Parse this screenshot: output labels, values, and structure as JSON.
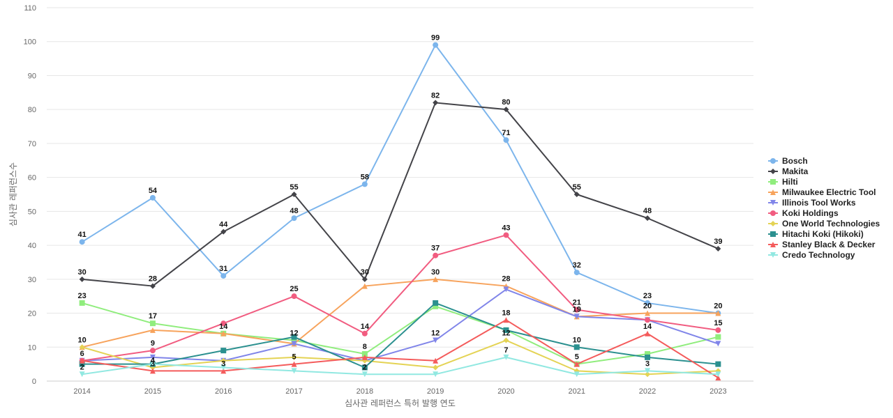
{
  "chart_data": {
    "type": "line",
    "title": "",
    "xlabel": "심사관 레퍼런스 특허 발행 연도",
    "ylabel": "심사관 레퍼런스수",
    "categories": [
      "2014",
      "2015",
      "2016",
      "2017",
      "2018",
      "2019",
      "2020",
      "2021",
      "2022",
      "2023"
    ],
    "ylim": [
      0,
      110
    ],
    "yticks": [
      0,
      10,
      20,
      30,
      40,
      50,
      60,
      70,
      80,
      90,
      100,
      110
    ],
    "grid": true,
    "legend_position": "right",
    "series": [
      {
        "name": "Bosch",
        "color": "#7cb5ec",
        "marker": "circle",
        "values": [
          41,
          54,
          31,
          48,
          58,
          99,
          71,
          32,
          23,
          20
        ]
      },
      {
        "name": "Makita",
        "color": "#434348",
        "marker": "diamond",
        "values": [
          30,
          28,
          44,
          55,
          30,
          82,
          80,
          55,
          48,
          39
        ]
      },
      {
        "name": "Hilti",
        "color": "#90ed7d",
        "marker": "square",
        "values": [
          23,
          17,
          14,
          12,
          8,
          22,
          15,
          5,
          8,
          13
        ]
      },
      {
        "name": "Milwaukee Electric Tool",
        "color": "#f7a35c",
        "marker": "triangle",
        "values": [
          10,
          15,
          14,
          11,
          28,
          30,
          28,
          19,
          20,
          20
        ]
      },
      {
        "name": "Illinois Tool Works",
        "color": "#8085e9",
        "marker": "triangle-down",
        "values": [
          6,
          7,
          6,
          11,
          6,
          12,
          27,
          19,
          18,
          11
        ]
      },
      {
        "name": "Koki Holdings",
        "color": "#f15c80",
        "marker": "circle",
        "values": [
          6,
          9,
          17,
          25,
          14,
          37,
          43,
          21,
          18,
          15
        ]
      },
      {
        "name": "One World Technologies",
        "color": "#e4d354",
        "marker": "diamond",
        "values": [
          10,
          4,
          6,
          7,
          6,
          4,
          12,
          3,
          2,
          3
        ]
      },
      {
        "name": "Hitachi Koki (Hikoki)",
        "color": "#2b908f",
        "marker": "square",
        "values": [
          5,
          5,
          9,
          13,
          4,
          23,
          15,
          10,
          7,
          5
        ]
      },
      {
        "name": "Stanley Black & Decker",
        "color": "#f45b5b",
        "marker": "triangle",
        "values": [
          6,
          3,
          3,
          5,
          7,
          6,
          18,
          5,
          14,
          1
        ]
      },
      {
        "name": "Credo Technology",
        "color": "#91e8e1",
        "marker": "triangle-down",
        "values": [
          2,
          5,
          4,
          3,
          2,
          2,
          7,
          2,
          3,
          2
        ]
      }
    ],
    "data_labels": [
      {
        "series": "Bosch",
        "points": [
          0,
          1,
          2,
          3,
          4,
          5,
          6,
          7,
          8,
          9
        ]
      },
      {
        "series": "Makita",
        "points": [
          0,
          1,
          2,
          3,
          4,
          5,
          6,
          7,
          8,
          9
        ]
      },
      {
        "series": "Hilti",
        "points": [
          0,
          1,
          2,
          3,
          4
        ]
      },
      {
        "series": "Milwaukee Electric Tool",
        "points": [
          5,
          6,
          7,
          8
        ]
      },
      {
        "series": "Illinois Tool Works",
        "points": [
          5
        ]
      },
      {
        "series": "Koki Holdings",
        "points": [
          0,
          1,
          3,
          4,
          5,
          6,
          7,
          9
        ]
      },
      {
        "series": "One World Technologies",
        "points": [
          0,
          1,
          6
        ]
      },
      {
        "series": "Hitachi Koki (Hikoki)",
        "points": [
          7
        ]
      },
      {
        "series": "Stanley Black & Decker",
        "points": [
          1,
          2,
          3,
          6,
          7,
          8
        ]
      },
      {
        "series": "Credo Technology",
        "points": [
          0,
          4,
          6,
          8
        ]
      }
    ]
  }
}
